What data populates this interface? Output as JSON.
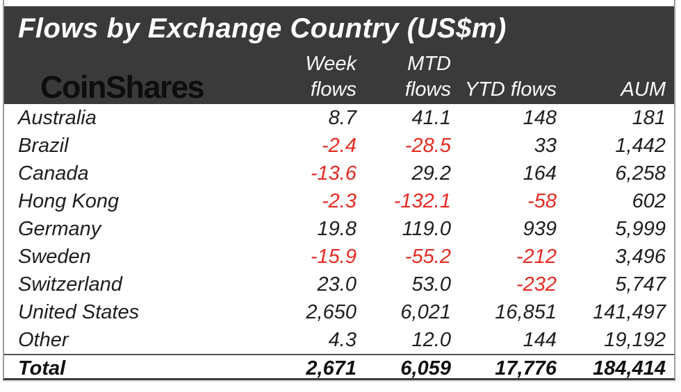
{
  "title": "Flows by Exchange Country (US$m)",
  "logo": {
    "text": "CoinShares"
  },
  "header": {
    "columns": [
      {
        "line1": "Week",
        "line2": "flows"
      },
      {
        "line1": "MTD",
        "line2": "flows"
      },
      {
        "line1": "",
        "line2": "YTD flows"
      },
      {
        "line1": "",
        "line2": "AUM"
      }
    ]
  },
  "rows": [
    {
      "country": "Australia",
      "week": "8.7",
      "mtd": "41.1",
      "ytd": "148",
      "aum": "181"
    },
    {
      "country": "Brazil",
      "week": "-2.4",
      "mtd": "-28.5",
      "ytd": "33",
      "aum": "1,442"
    },
    {
      "country": "Canada",
      "week": "-13.6",
      "mtd": "29.2",
      "ytd": "164",
      "aum": "6,258"
    },
    {
      "country": "Hong Kong",
      "week": "-2.3",
      "mtd": "-132.1",
      "ytd": "-58",
      "aum": "602"
    },
    {
      "country": "Germany",
      "week": "19.8",
      "mtd": "119.0",
      "ytd": "939",
      "aum": "5,999"
    },
    {
      "country": "Sweden",
      "week": "-15.9",
      "mtd": "-55.2",
      "ytd": "-212",
      "aum": "3,496"
    },
    {
      "country": "Switzerland",
      "week": "23.0",
      "mtd": "53.0",
      "ytd": "-232",
      "aum": "5,747"
    },
    {
      "country": "United States",
      "week": "2,650",
      "mtd": "6,021",
      "ytd": "16,851",
      "aum": "141,497"
    },
    {
      "country": "Other",
      "week": "4.3",
      "mtd": "12.0",
      "ytd": "144",
      "aum": "19,192"
    }
  ],
  "total": {
    "label": "Total",
    "week": "2,671",
    "mtd": "6,059",
    "ytd": "17,776",
    "aum": "184,414"
  },
  "colors": {
    "header_bg": "#3a3a3a",
    "header_text": "#fafafa",
    "body_text": "#1e1e1e",
    "negative": "#e62a21",
    "logo_text": "#0d0d0d"
  },
  "chart_data": {
    "type": "table",
    "title": "Flows by Exchange Country (US$m)",
    "source_brand": "CoinShares",
    "columns": [
      "Country",
      "Week flows",
      "MTD flows",
      "YTD flows",
      "AUM"
    ],
    "rows": [
      [
        "Australia",
        8.7,
        41.1,
        148,
        181
      ],
      [
        "Brazil",
        -2.4,
        -28.5,
        33,
        1442
      ],
      [
        "Canada",
        -13.6,
        29.2,
        164,
        6258
      ],
      [
        "Hong Kong",
        -2.3,
        -132.1,
        -58,
        602
      ],
      [
        "Germany",
        19.8,
        119.0,
        939,
        5999
      ],
      [
        "Sweden",
        -15.9,
        -55.2,
        -212,
        3496
      ],
      [
        "Switzerland",
        23.0,
        53.0,
        -232,
        5747
      ],
      [
        "United States",
        2650,
        6021,
        16851,
        141497
      ],
      [
        "Other",
        4.3,
        12.0,
        144,
        19192
      ]
    ],
    "total_row": [
      "Total",
      2671,
      6059,
      17776,
      184414
    ],
    "negative_values_shown_in_red": true
  }
}
